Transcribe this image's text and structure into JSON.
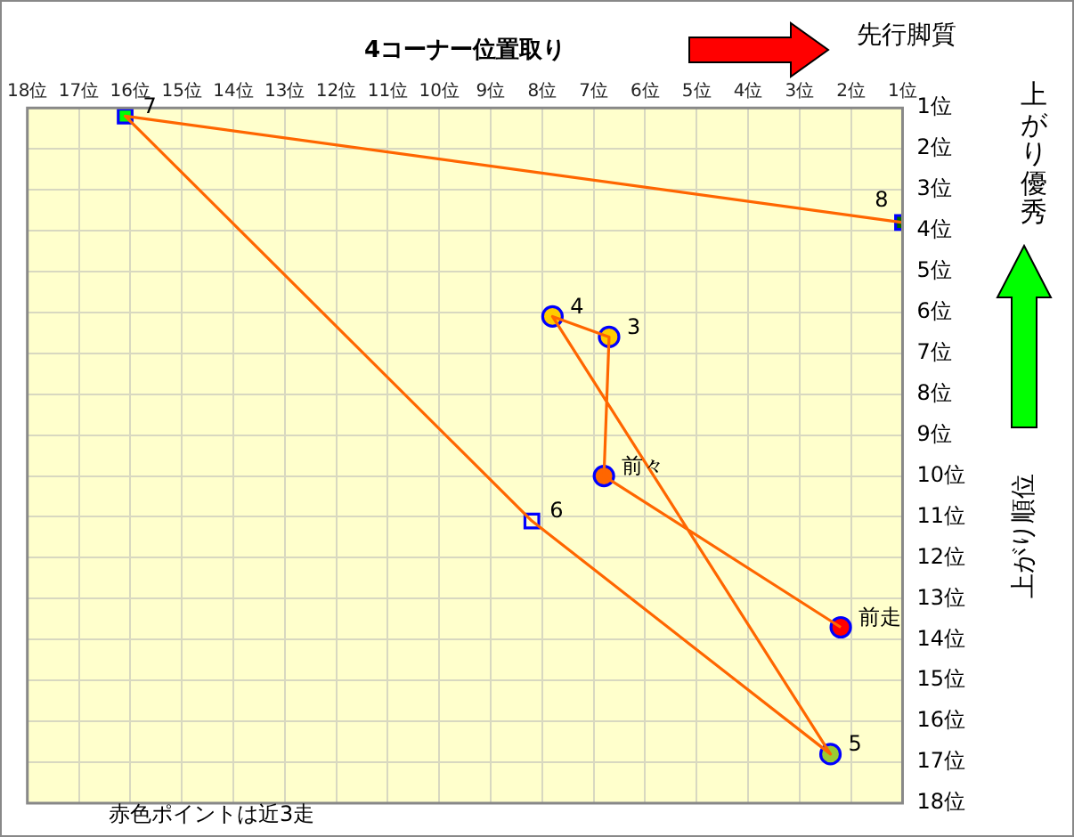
{
  "chart_data": {
    "type": "scatter",
    "xlabel": "4コーナー位置取り",
    "ylabel": "上がり順位",
    "xlim": [
      18,
      1
    ],
    "ylim": [
      18,
      1
    ],
    "xticks": [
      {
        "value": 18,
        "label": "18位"
      },
      {
        "value": 17,
        "label": "17位"
      },
      {
        "value": 16,
        "label": "16位"
      },
      {
        "value": 15,
        "label": "15位"
      },
      {
        "value": 14,
        "label": "14位"
      },
      {
        "value": 13,
        "label": "13位"
      },
      {
        "value": 12,
        "label": "12位"
      },
      {
        "value": 11,
        "label": "11位"
      },
      {
        "value": 10,
        "label": "10位"
      },
      {
        "value": 9,
        "label": "9位"
      },
      {
        "value": 8,
        "label": "8位"
      },
      {
        "value": 7,
        "label": "7位"
      },
      {
        "value": 6,
        "label": "6位"
      },
      {
        "value": 5,
        "label": "5位"
      },
      {
        "value": 4,
        "label": "4位"
      },
      {
        "value": 3,
        "label": "3位"
      },
      {
        "value": 2,
        "label": "2位"
      },
      {
        "value": 1,
        "label": "1位"
      }
    ],
    "yticks": [
      {
        "value": 1,
        "label": "1位"
      },
      {
        "value": 2,
        "label": "2位"
      },
      {
        "value": 3,
        "label": "3位"
      },
      {
        "value": 4,
        "label": "4位"
      },
      {
        "value": 5,
        "label": "5位"
      },
      {
        "value": 6,
        "label": "6位"
      },
      {
        "value": 7,
        "label": "7位"
      },
      {
        "value": 8,
        "label": "8位"
      },
      {
        "value": 9,
        "label": "9位"
      },
      {
        "value": 10,
        "label": "10位"
      },
      {
        "value": 11,
        "label": "11位"
      },
      {
        "value": 12,
        "label": "12位"
      },
      {
        "value": 13,
        "label": "13位"
      },
      {
        "value": 14,
        "label": "14位"
      },
      {
        "value": 15,
        "label": "15位"
      },
      {
        "value": 16,
        "label": "16位"
      },
      {
        "value": 17,
        "label": "17位"
      },
      {
        "value": 18,
        "label": "18位"
      }
    ],
    "series": [
      {
        "type": "line",
        "color": "#ff6600",
        "marker": "none",
        "x": [
          2.2,
          6.8,
          6.7,
          7.8,
          2.4,
          8.2,
          16.1,
          1
        ],
        "values": [
          13.7,
          10,
          6.6,
          6.1,
          16.8,
          11.1,
          1.2,
          3.8
        ]
      },
      {
        "marker": "circle",
        "x": [
          2.2,
          6.8,
          6.7,
          7.8,
          2.4
        ],
        "values": [
          13.7,
          10,
          6.6,
          6.1,
          16.8
        ],
        "colors": [
          "#ff0000",
          "#ff6600",
          "#ffcc00",
          "#ffcc00",
          "#99cc33"
        ]
      },
      {
        "marker": "square",
        "x": [
          8.2,
          16.1,
          1
        ],
        "values": [
          11.1,
          1.2,
          3.8
        ],
        "colors": [
          "#ffffcc",
          "#00ff00",
          "#006600"
        ]
      }
    ],
    "annotations": [
      {
        "text": "前走",
        "x": 2.2,
        "y": 13.7
      },
      {
        "text": "前々",
        "x": 6.8,
        "y": 10
      },
      {
        "text": "3",
        "x": 6.7,
        "y": 6.6
      },
      {
        "text": "4",
        "x": 7.8,
        "y": 6.1
      },
      {
        "text": "5",
        "x": 2.4,
        "y": 16.8
      },
      {
        "text": "6",
        "x": 8.2,
        "y": 11.1
      },
      {
        "text": "7",
        "x": 16.1,
        "y": 1.2
      },
      {
        "text": "8",
        "x": 1,
        "y": 3.8
      },
      "先行脚質",
      "上がり優秀",
      "赤色ポイントは近3走"
    ],
    "grid": true,
    "legend": false
  }
}
